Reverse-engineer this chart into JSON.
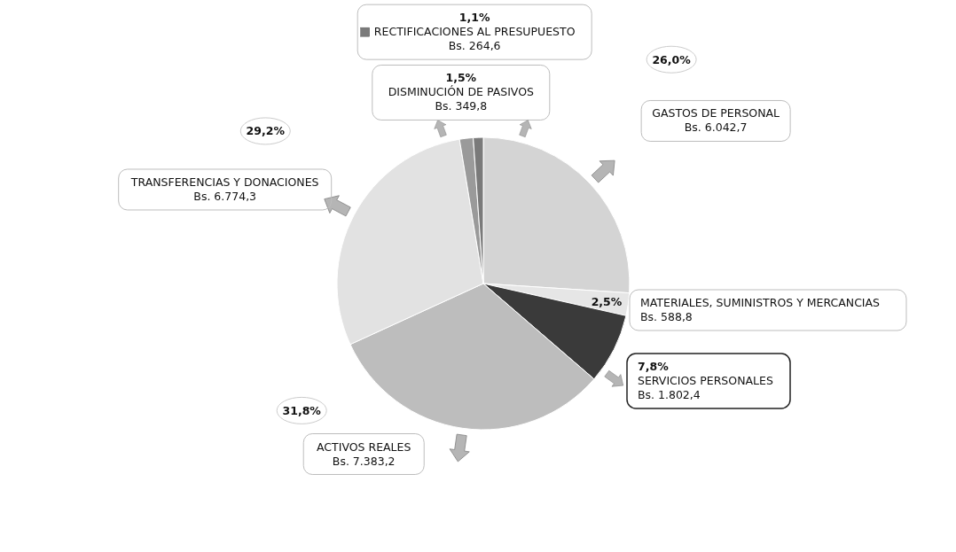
{
  "chart_data": {
    "type": "pie",
    "categories": [
      "GASTOS DE PERSONAL",
      "MATERIALES, SUMINISTROS Y MERCANCIAS",
      "SERVICIOS PERSONALES",
      "ACTIVOS REALES",
      "TRANSFERENCIAS Y DONACIONES",
      "DISMINUCIÓN DE PASIVOS",
      "RECTIFICACIONES AL PRESUPUESTO"
    ],
    "values": [
      26.0,
      2.5,
      7.8,
      31.8,
      29.2,
      1.5,
      1.1
    ],
    "value_labels": [
      "26,0%",
      "2,5%",
      "7,8%",
      "31,8%",
      "29,2%",
      "1,5%",
      "1,1%"
    ],
    "annotations": [
      "Bs. 6.042,7",
      "Bs. 588,8",
      "Bs. 1.802,4",
      "Bs. 7.383,2",
      "Bs. 6.774,3",
      "Bs. 349,8",
      "Bs. 264,6"
    ],
    "colors": [
      "#d4d4d4",
      "#e6e6e6",
      "#3a3a3a",
      "#bdbdbd",
      "#e2e2e2",
      "#9a9a9a",
      "#7a7a7a"
    ]
  }
}
